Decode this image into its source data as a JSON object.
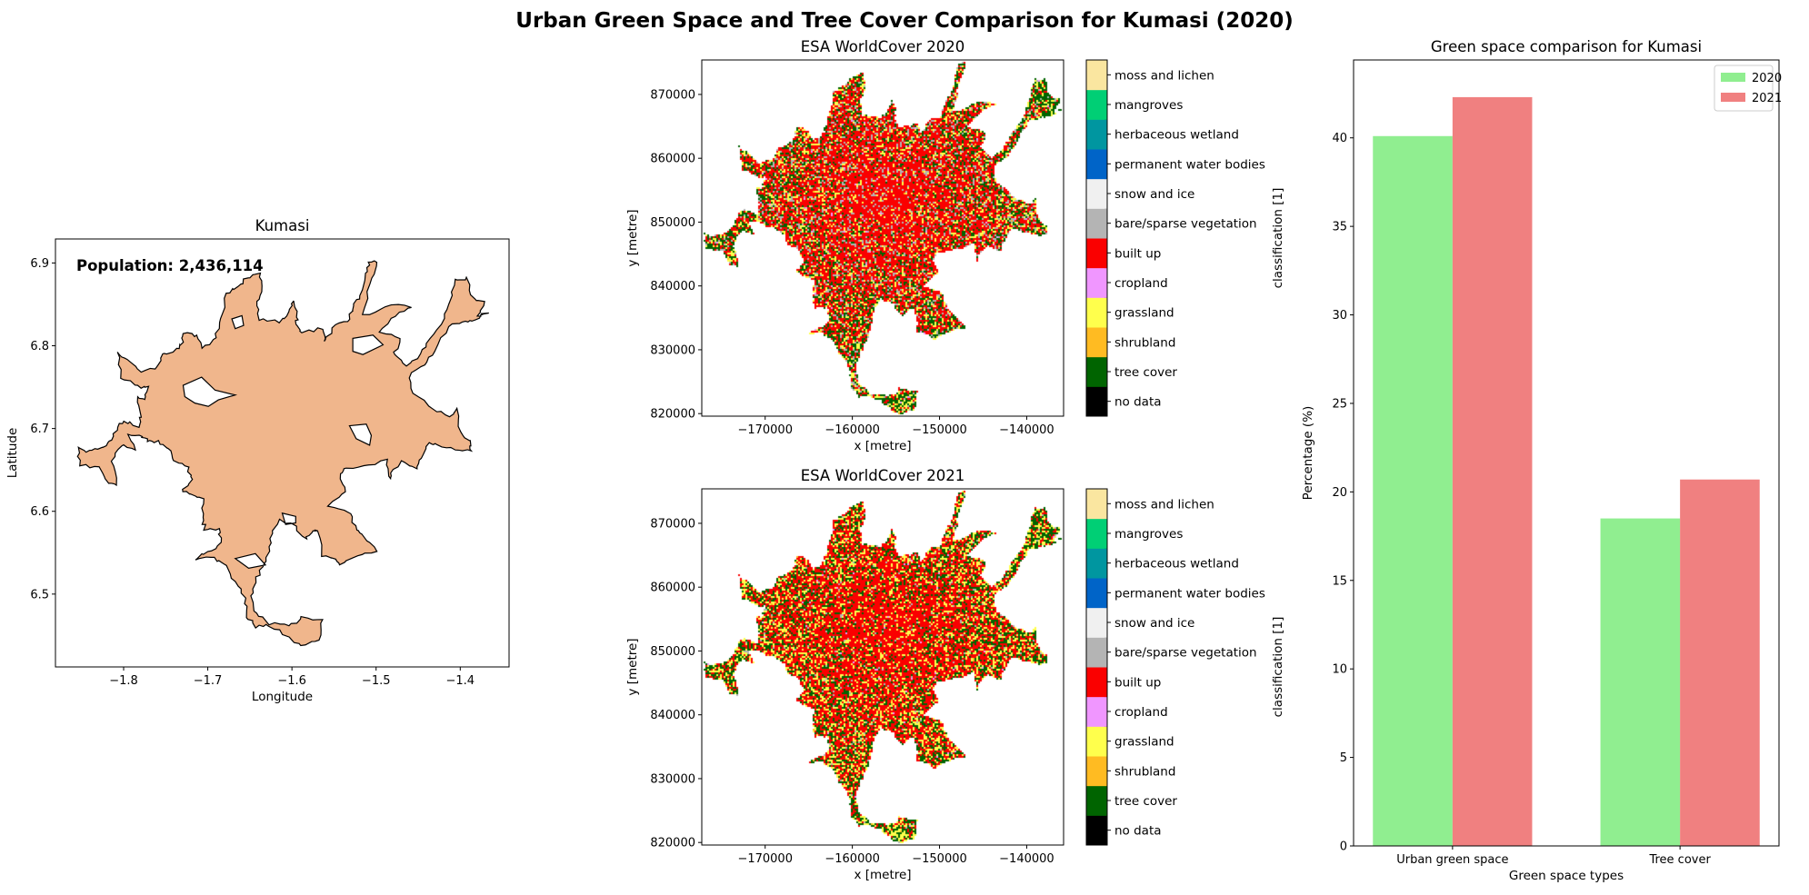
{
  "figure": {
    "title": "Urban Green Space and Tree Cover Comparison for Kumasi (2020)"
  },
  "chart_data": [
    {
      "type": "map",
      "title": "Kumasi",
      "xlabel": "Longitude",
      "ylabel": "Latitude",
      "annotation": "Population: 2,436,114",
      "xlim": [
        -1.881,
        -1.342
      ],
      "ylim": [
        6.412,
        6.929
      ],
      "xticks": [
        -1.8,
        -1.7,
        -1.6,
        -1.5,
        -1.4
      ],
      "xtick_labels": [
        "−1.8",
        "−1.7",
        "−1.6",
        "−1.5",
        "−1.4"
      ],
      "yticks": [
        6.5,
        6.6,
        6.7,
        6.8,
        6.9
      ],
      "ytick_labels": [
        "6.5",
        "6.6",
        "6.7",
        "6.8",
        "6.9"
      ],
      "fill_color": "#f0b68c",
      "edge_color": "#000000"
    },
    {
      "type": "heatmap",
      "title": "ESA WorldCover 2020",
      "xlabel": "x [metre]",
      "ylabel": "y [metre]",
      "xlim": [
        -177270,
        -135770
      ],
      "ylim": [
        819600,
        875400
      ],
      "xticks": [
        -170000,
        -160000,
        -150000,
        -140000
      ],
      "xtick_labels": [
        "−170000",
        "−160000",
        "−150000",
        "−140000"
      ],
      "yticks": [
        820000,
        830000,
        840000,
        850000,
        860000,
        870000
      ],
      "ytick_labels": [
        "820000",
        "830000",
        "840000",
        "850000",
        "860000",
        "870000"
      ],
      "colorbar_label": "classification [1]",
      "dominant_classes": [
        "built up",
        "bare/sparse vegetation",
        "grassland",
        "tree cover"
      ]
    },
    {
      "type": "heatmap",
      "title": "ESA WorldCover 2021",
      "xlabel": "x [metre]",
      "ylabel": "y [metre]",
      "xlim": [
        -177270,
        -135770
      ],
      "ylim": [
        819600,
        875400
      ],
      "xticks": [
        -170000,
        -160000,
        -150000,
        -140000
      ],
      "xtick_labels": [
        "−170000",
        "−160000",
        "−150000",
        "−140000"
      ],
      "yticks": [
        820000,
        830000,
        840000,
        850000,
        860000,
        870000
      ],
      "ytick_labels": [
        "820000",
        "830000",
        "840000",
        "850000",
        "860000",
        "870000"
      ],
      "colorbar_label": "classification [1]",
      "dominant_classes": [
        "built up",
        "grassland",
        "tree cover"
      ]
    },
    {
      "type": "bar",
      "title": "Green space comparison for Kumasi",
      "xlabel": "Green space types",
      "ylabel": "Percentage (%)",
      "categories": [
        "Urban green space",
        "Tree cover"
      ],
      "series": [
        {
          "name": "2020",
          "values": [
            40.1,
            18.5
          ],
          "color": "#90ee90"
        },
        {
          "name": "2021",
          "values": [
            42.3,
            20.7
          ],
          "color": "#f08080"
        }
      ],
      "ylim": [
        0,
        44.4
      ],
      "yticks": [
        0,
        5,
        10,
        15,
        20,
        25,
        30,
        35,
        40
      ],
      "legend": "top-right",
      "grid": false
    }
  ],
  "worldcover_classes": [
    {
      "label": "no data",
      "color": "#000000"
    },
    {
      "label": "tree cover",
      "color": "#006400"
    },
    {
      "label": "shrubland",
      "color": "#ffbb22"
    },
    {
      "label": "grassland",
      "color": "#ffff4c"
    },
    {
      "label": "cropland",
      "color": "#f096ff"
    },
    {
      "label": "built up",
      "color": "#fa0000"
    },
    {
      "label": "bare/sparse vegetation",
      "color": "#b4b4b4"
    },
    {
      "label": "snow and ice",
      "color": "#f0f0f0"
    },
    {
      "label": "permanent water bodies",
      "color": "#0064c8"
    },
    {
      "label": "herbaceous wetland",
      "color": "#0096a0"
    },
    {
      "label": "mangroves",
      "color": "#00cf75"
    },
    {
      "label": "moss and lichen",
      "color": "#fae6a0"
    }
  ]
}
